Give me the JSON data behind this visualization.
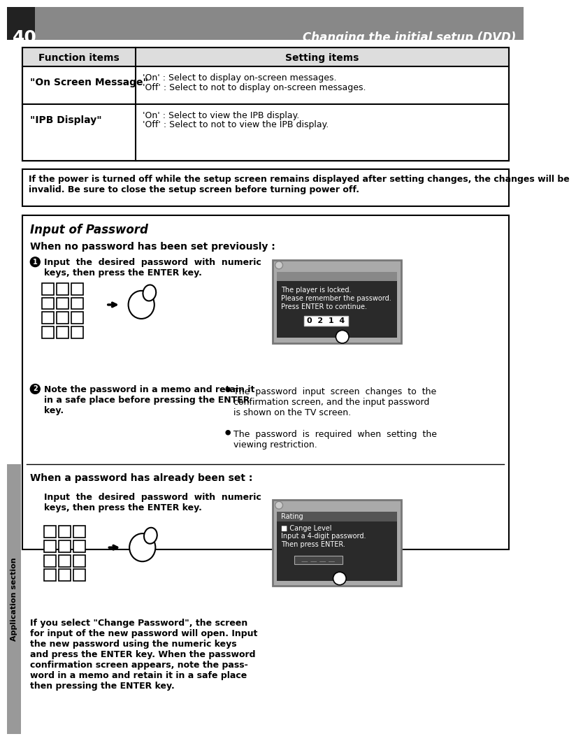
{
  "page_num": "40",
  "header_title": "Changing the initial setup (DVD)",
  "header_bg": "#888888",
  "table_headers": [
    "Function items",
    "Setting items"
  ],
  "table_rows": [
    {
      "func": "\"On Screen Message\"",
      "settings": [
        "'On' : Select to display on-screen messages.",
        "'Off' : Select to not to display on-screen messages."
      ]
    },
    {
      "func": "\"IPB Display\"",
      "settings": [
        "'On' : Select to view the IPB display.",
        "'Off' : Select to not to view the IPB display."
      ]
    }
  ],
  "warning_text": "If the power is turned off while the setup screen remains displayed after setting changes, the changes will be\ninvalid. Be sure to close the setup screen before turning power off.",
  "section_title": "Input of Password",
  "subsection1_title": "When no password has been set previously :",
  "step1_text": "Input  the  desired  password  with  numeric\nkeys, then press the ENTER key.",
  "step2_text": "Note the password in a memo and retain it\nin a safe place before pressing the ENTER\nkey.",
  "bullet1_text": "The  password  input  screen  changes  to  the\nconfirmation screen, and the input password\nis shown on the TV screen.",
  "bullet2_text": "The  password  is  required  when  setting  the\nviewing restriction.",
  "screen1_lines": [
    "The player is locked.",
    "Please remember the password.",
    "Press ENTER to continue."
  ],
  "screen1_code": "0  2  1  4",
  "subsection2_title": "When a password has already been set :",
  "step3_text": "Input  the  desired  password  with  numeric\nkeys, then press the ENTER key.",
  "screen2_title": "Rating",
  "screen2_lines": [
    "■ Cange Level",
    "Input a 4-digit password.",
    "Then press ENTER."
  ],
  "bottom_text": "If you select \"Change Password\", the screen\nfor input of the new password will open. Input\nthe new password using the numeric keys\nand press the ENTER key. When the password\nconfirmation screen appears, note the pass-\nword in a memo and retain it in a safe place\nthen pressing the ENTER key.",
  "sidebar_text": "Application section",
  "bg_color": "#ffffff",
  "header_text_color": "#ffffff",
  "body_text_color": "#000000"
}
